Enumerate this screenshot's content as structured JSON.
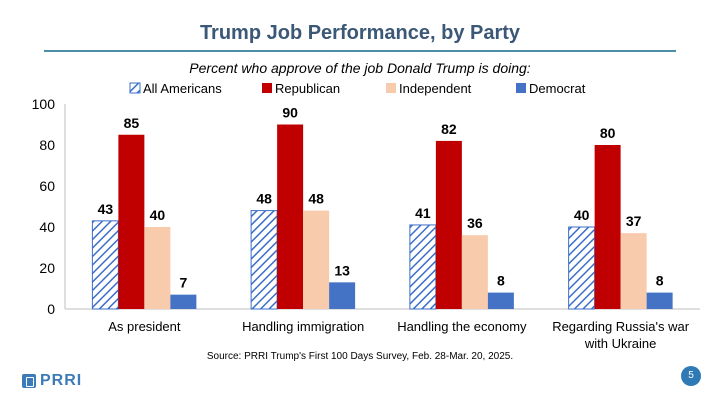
{
  "slide": {
    "title": "Trump Job Performance, by Party",
    "source": "Source: PRRI Trump's First 100 Days Survey, Feb. 28-Mar. 20, 2025.",
    "logo_text": "PRRI",
    "page_number": "5"
  },
  "chart_data": {
    "type": "bar",
    "title": "Percent who approve of the job Donald Trump is doing:",
    "categories": [
      [
        "As president"
      ],
      [
        "Handling immigration"
      ],
      [
        "Handling the economy"
      ],
      [
        "Regarding Russia's war",
        "with Ukraine"
      ]
    ],
    "series": [
      {
        "name": "All Americans",
        "values": [
          43,
          48,
          41,
          40
        ],
        "color": "#3B6EC9",
        "pattern": "diagonal-hatch"
      },
      {
        "name": "Republican",
        "values": [
          85,
          90,
          82,
          80
        ],
        "color": "#C00000"
      },
      {
        "name": "Independent",
        "values": [
          40,
          48,
          36,
          37
        ],
        "color": "#F8CBAD"
      },
      {
        "name": "Democrat",
        "values": [
          7,
          13,
          8,
          8
        ],
        "color": "#4472C4"
      }
    ],
    "ylim": [
      0,
      100
    ],
    "yticks": [
      0,
      20,
      40,
      60,
      80,
      100
    ],
    "grid": false,
    "legend": "top"
  }
}
